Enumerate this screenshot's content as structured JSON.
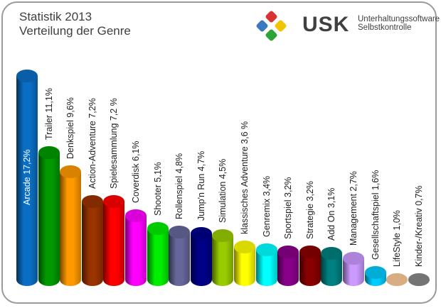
{
  "header": {
    "title_line1": "Statistik 2013",
    "title_line2": "Verteilung der Genre"
  },
  "logo": {
    "name": "USK",
    "line1": "Unterhaltungssoftware",
    "line2": "Selbstkontrolle",
    "colors": [
      "#d93232",
      "#3a78c2",
      "#f2c500",
      "#2ea33a"
    ]
  },
  "chart_data": {
    "type": "bar",
    "title": "Statistik 2013 Verteilung der Genre",
    "xlabel": "",
    "ylabel": "",
    "style": "3d-cylinder",
    "grid": false,
    "legend": "none",
    "ylim": [
      0,
      17.2
    ],
    "categories": [
      "Arcade",
      "Trailer",
      "Denkspiel",
      "Action-Adventure",
      "Spielesammlung",
      "Coverdisk",
      "Shooter",
      "Rollenspiel",
      "Jump'n Run",
      "Simulation",
      "klassisches Adventure",
      "Genremix",
      "Sportspiel",
      "Strategie",
      "Add On",
      "Management",
      "Gesellschaftspiel",
      "LifeStyle",
      "Kinder-/Kreativ"
    ],
    "values": [
      17.2,
      11.1,
      9.6,
      7.2,
      7.2,
      6.1,
      5.1,
      4.8,
      4.7,
      4.5,
      3.6,
      3.4,
      3.2,
      3.2,
      3.1,
      2.7,
      1.6,
      1.0,
      0.7
    ],
    "labels": [
      "Arcade 17,2%",
      "Trailer 11,1%",
      "Denkspiel 9,6%",
      "Action-Adventure 7,2%",
      "Spielesammlung 7,2 %",
      "Coverdisk 6,1%",
      "Shooter 5,1%",
      "Rollenspiel 4,8%",
      "Jump'n Run 4,7%",
      "Simulation 4,5%",
      "klassisches Adventure 3,6 %",
      "Genremix 3,4%",
      "Sportspiel 3,2%",
      "Strategie 3,2%",
      "Add On 3,1%",
      "Management 2,7%",
      "Gesellschaftspiel 1,6%",
      "LifeStyle 1,0%",
      "Kinder-/Kreativ 0,7%"
    ],
    "colors": [
      "#0a6fc4",
      "#009a00",
      "#ff9900",
      "#993300",
      "#ff0000",
      "#ff00ff",
      "#00ee00",
      "#66669a",
      "#000088",
      "#99cc00",
      "#ffff00",
      "#00ffff",
      "#880088",
      "#880000",
      "#008080",
      "#cc99ff",
      "#00ccff",
      "#ffcc99",
      "#888888"
    ]
  }
}
